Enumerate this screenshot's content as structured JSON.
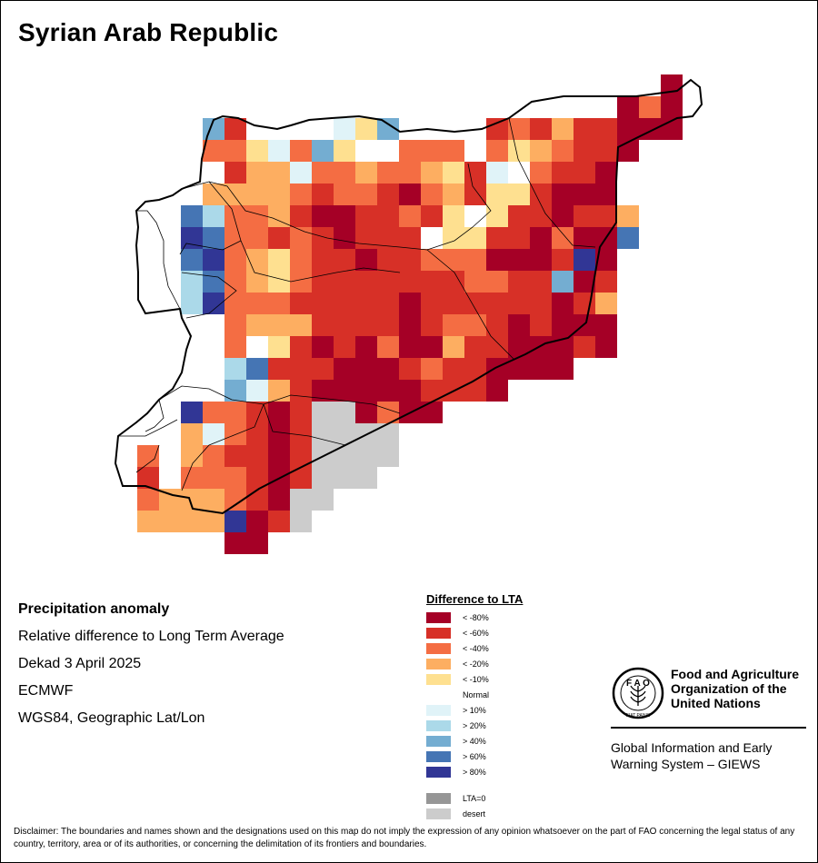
{
  "title": "Syrian Arab Republic",
  "info": {
    "heading": "Precipitation anomaly",
    "line1": "Relative difference to Long Term Average",
    "line2": "Dekad 3 April 2025",
    "line3": "ECMWF",
    "line4": "WGS84, Geographic Lat/Lon"
  },
  "legend": {
    "title": "Difference to LTA",
    "items": [
      {
        "key": "m80",
        "label": "< -80%",
        "color": "#a50026"
      },
      {
        "key": "m60",
        "label": "< -60%",
        "color": "#d73027"
      },
      {
        "key": "m40",
        "label": "< -40%",
        "color": "#f46d43"
      },
      {
        "key": "m20",
        "label": "< -20%",
        "color": "#fdae61"
      },
      {
        "key": "m10",
        "label": "< -10%",
        "color": "#fee090"
      },
      {
        "key": "norm",
        "label": "Normal",
        "color": "#ffffff"
      },
      {
        "key": "p10",
        "label": "> 10%",
        "color": "#e0f3f8"
      },
      {
        "key": "p20",
        "label": "> 20%",
        "color": "#abd9e9"
      },
      {
        "key": "p40",
        "label": "> 40%",
        "color": "#74add1"
      },
      {
        "key": "p60",
        "label": "> 60%",
        "color": "#4575b4"
      },
      {
        "key": "p80",
        "label": "> 80%",
        "color": "#313695"
      }
    ],
    "extra": [
      {
        "key": "lta0",
        "label": "LTA=0",
        "color": "#969696"
      },
      {
        "key": "desert",
        "label": "desert",
        "color": "#cccccc"
      }
    ]
  },
  "org": {
    "name_line1": "Food and Agriculture",
    "name_line2": "Organization of the",
    "name_line3": "United Nations",
    "logo_text": "FIAT PANIS",
    "system_line1": "Global Information and Early",
    "system_line2": "Warning System – GIEWS"
  },
  "disclaimer": "Disclaimer: The boundaries and names shown and the designations used on this map do not imply the expression of any opinion whatsoever on the part of FAO concerning the legal status of any country, territory, area or of its authorities, or concerning the delimitation of its frontiers and boundaries.",
  "map_grid": {
    "rows": [
      [
        "",
        "",
        "",
        "",
        "",
        "",
        "",
        "",
        "",
        "",
        "",
        "",
        "",
        "",
        "",
        "",
        "",
        "",
        "",
        "",
        "",
        "",
        "",
        "",
        "",
        "m80"
      ],
      [
        "",
        "",
        "",
        "",
        "",
        "",
        "",
        "",
        "",
        "",
        "",
        "",
        "",
        "",
        "",
        "",
        "",
        "",
        "",
        "",
        "",
        "",
        "",
        "m80",
        "m40",
        "m80"
      ],
      [
        "",
        "",
        "",
        "",
        "p40",
        "m60",
        "",
        "",
        "",
        "",
        "p10",
        "m10",
        "p40",
        "",
        "",
        "",
        "",
        "m60",
        "m40",
        "m60",
        "m20",
        "m60",
        "m60",
        "m80",
        "m80",
        "m80"
      ],
      [
        "",
        "",
        "",
        "",
        "m40",
        "m40",
        "m10",
        "p10",
        "m40",
        "p40",
        "m10",
        "",
        "",
        "m40",
        "m40",
        "m40",
        "",
        "m40",
        "m10",
        "m20",
        "m40",
        "m60",
        "m60",
        "m80",
        "",
        ""
      ],
      [
        "",
        "",
        "",
        "",
        "",
        "m60",
        "m20",
        "m20",
        "p10",
        "m40",
        "m40",
        "m20",
        "m40",
        "m40",
        "m20",
        "m10",
        "m60",
        "p10",
        "",
        "m40",
        "m60",
        "m60",
        "m80",
        "",
        "",
        ""
      ],
      [
        "",
        "",
        "",
        "",
        "m20",
        "m20",
        "m20",
        "m20",
        "m40",
        "m60",
        "m40",
        "m40",
        "m60",
        "m80",
        "m40",
        "m20",
        "m60",
        "m10",
        "m10",
        "m60",
        "m80",
        "m80",
        "m80",
        "",
        "",
        ""
      ],
      [
        "",
        "",
        "",
        "p60",
        "p20",
        "m40",
        "m40",
        "m20",
        "m60",
        "m80",
        "m80",
        "m60",
        "m60",
        "m40",
        "m60",
        "m10",
        "",
        "m10",
        "m60",
        "m60",
        "m80",
        "m60",
        "m60",
        "m20",
        "",
        ""
      ],
      [
        "",
        "",
        "",
        "p80",
        "p60",
        "m40",
        "m40",
        "m60",
        "m40",
        "m60",
        "m80",
        "m60",
        "m60",
        "m60",
        "",
        "m10",
        "m10",
        "m60",
        "m60",
        "m80",
        "m40",
        "m80",
        "m80",
        "p60",
        "",
        ""
      ],
      [
        "",
        "",
        "",
        "p60",
        "p80",
        "m40",
        "m20",
        "m10",
        "m40",
        "m60",
        "m60",
        "m80",
        "m60",
        "m60",
        "m40",
        "m40",
        "m40",
        "m80",
        "m80",
        "m80",
        "m60",
        "p80",
        "m80",
        "",
        "",
        ""
      ],
      [
        "",
        "",
        "",
        "p20",
        "p60",
        "m40",
        "m20",
        "m10",
        "m40",
        "m60",
        "m60",
        "m60",
        "m60",
        "m60",
        "m60",
        "m60",
        "m40",
        "m40",
        "m60",
        "m60",
        "p40",
        "m80",
        "m60",
        "",
        "",
        ""
      ],
      [
        "",
        "",
        "",
        "p20",
        "p80",
        "m40",
        "m40",
        "m40",
        "m60",
        "m60",
        "m60",
        "m60",
        "m60",
        "m80",
        "m60",
        "m60",
        "m60",
        "m60",
        "m60",
        "m60",
        "m80",
        "m60",
        "m20",
        "",
        "",
        ""
      ],
      [
        "",
        "",
        "",
        "",
        "",
        "m40",
        "m20",
        "m20",
        "m20",
        "m60",
        "m60",
        "m60",
        "m60",
        "m80",
        "m60",
        "m40",
        "m40",
        "m60",
        "m80",
        "m60",
        "m80",
        "m80",
        "m80",
        "",
        "",
        ""
      ],
      [
        "",
        "",
        "",
        "",
        "",
        "m40",
        "",
        "m10",
        "m60",
        "m80",
        "m60",
        "m80",
        "m40",
        "m80",
        "m80",
        "m20",
        "m60",
        "m60",
        "m80",
        "m80",
        "m80",
        "m60",
        "m80",
        "",
        "",
        ""
      ],
      [
        "",
        "",
        "",
        "",
        "",
        "p20",
        "p60",
        "m60",
        "m60",
        "m60",
        "m80",
        "m80",
        "m80",
        "m60",
        "m40",
        "m60",
        "m60",
        "m80",
        "m80",
        "m80",
        "m80",
        "",
        "",
        "",
        "",
        ""
      ],
      [
        "",
        "",
        "",
        "",
        "",
        "p40",
        "p10",
        "m20",
        "m60",
        "m80",
        "m80",
        "m80",
        "m80",
        "m80",
        "m60",
        "m60",
        "m60",
        "m80",
        "",
        "",
        "",
        "",
        "",
        "",
        "",
        ""
      ],
      [
        "",
        "",
        "",
        "p80",
        "m40",
        "m40",
        "m60",
        "m80",
        "m60",
        "d",
        "d",
        "m80",
        "m40",
        "m80",
        "m80",
        "",
        "",
        "",
        "",
        "",
        "",
        "",
        "",
        "",
        "",
        ""
      ],
      [
        "",
        "",
        "",
        "m20",
        "p10",
        "m40",
        "m60",
        "m80",
        "m60",
        "d",
        "d",
        "d",
        "d",
        "",
        "",
        "",
        "",
        "",
        "",
        "",
        "",
        "",
        "",
        "",
        "",
        ""
      ],
      [
        "",
        "m40",
        "",
        "m20",
        "m40",
        "m60",
        "m60",
        "m80",
        "m60",
        "d",
        "d",
        "d",
        "d",
        "",
        "",
        "",
        "",
        "",
        "",
        "",
        "",
        "",
        "",
        "",
        "",
        ""
      ],
      [
        "",
        "m60",
        "",
        "m40",
        "m40",
        "m40",
        "m60",
        "m80",
        "m60",
        "d",
        "d",
        "d",
        "",
        "",
        "",
        "",
        "",
        "",
        "",
        "",
        "",
        "",
        "",
        "",
        "",
        ""
      ],
      [
        "",
        "m40",
        "m20",
        "m20",
        "m20",
        "m40",
        "m60",
        "m80",
        "d",
        "d",
        "",
        "",
        "",
        "",
        "",
        "",
        "",
        "",
        "",
        "",
        "",
        "",
        "",
        "",
        "",
        ""
      ],
      [
        "",
        "m20",
        "m20",
        "m20",
        "m20",
        "p80",
        "m80",
        "m60",
        "d",
        "",
        "",
        "",
        "",
        "",
        "",
        "",
        "",
        "",
        "",
        "",
        "",
        "",
        "",
        "",
        "",
        ""
      ],
      [
        "",
        "",
        "",
        "",
        "",
        "m80",
        "m80",
        "",
        "",
        "",
        "",
        "",
        "",
        "",
        "",
        "",
        "",
        "",
        "",
        "",
        "",
        "",
        "",
        "",
        "",
        ""
      ]
    ]
  }
}
